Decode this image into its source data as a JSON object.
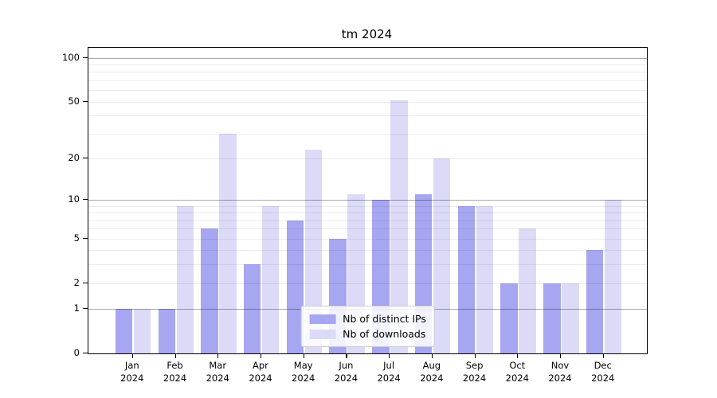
{
  "chart_data": {
    "type": "bar",
    "title": "tm 2024",
    "categories": [
      "Jan 2024",
      "Feb 2024",
      "Mar 2024",
      "Apr 2024",
      "May 2024",
      "Jun 2024",
      "Jul 2024",
      "Aug 2024",
      "Sep 2024",
      "Oct 2024",
      "Nov 2024",
      "Dec 2024"
    ],
    "x_tick_months": [
      "Jan",
      "Feb",
      "Mar",
      "Apr",
      "May",
      "Jun",
      "Jul",
      "Aug",
      "Sep",
      "Oct",
      "Nov",
      "Dec"
    ],
    "x_tick_year": "2024",
    "series": [
      {
        "name": "Nb of distinct IPs",
        "color": "#a6a6f1",
        "values": [
          1,
          1,
          6,
          3,
          7,
          5,
          10,
          11,
          9,
          2,
          2,
          4
        ]
      },
      {
        "name": "Nb of downloads",
        "color": "#dbdbf8",
        "values": [
          1,
          9,
          30,
          9,
          23,
          11,
          51,
          20,
          9,
          6,
          2,
          10
        ]
      }
    ],
    "y_scale": "log1p",
    "ylim": [
      0,
      117
    ],
    "y_tick_labels": [
      "0",
      "1",
      "2",
      "5",
      "10",
      "20",
      "50",
      "100"
    ],
    "y_major_ticks": [
      0,
      1,
      2,
      5,
      10,
      20,
      50,
      100
    ],
    "y_decade_ticks": [
      1,
      10,
      100
    ],
    "y_minor_ticks": [
      3,
      4,
      6,
      7,
      8,
      9,
      30,
      40,
      60,
      70,
      80,
      90
    ],
    "grid": true,
    "legend_position": "lower center",
    "xlabel": "",
    "ylabel": ""
  }
}
